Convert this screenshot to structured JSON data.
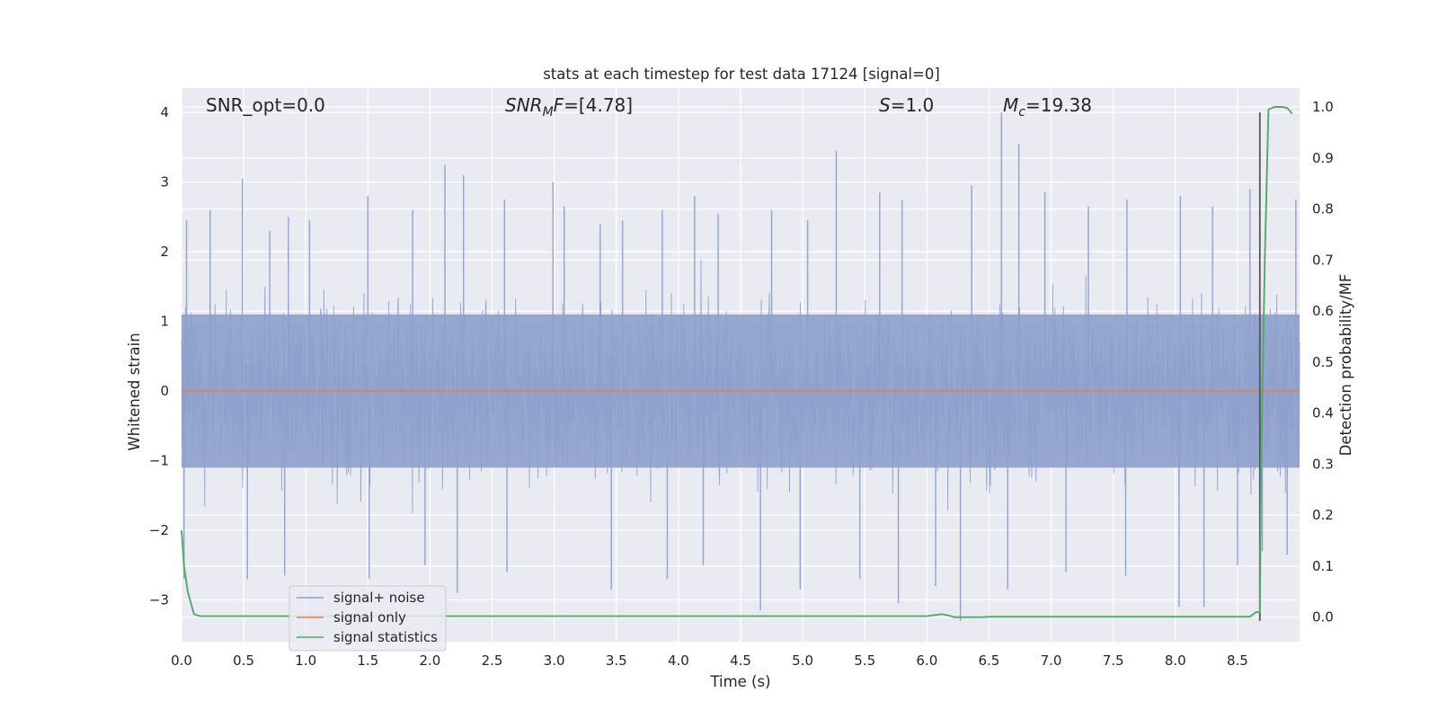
{
  "chart_data": {
    "type": "line",
    "title": "stats at each timestep for test data 17124 [signal=0]",
    "xlabel": "Time (s)",
    "ylabel": "Whitened strain",
    "ylabel_right": "Detection probability/MF",
    "xlim": [
      0.0,
      9.0
    ],
    "ylim": [
      -3.6,
      4.35
    ],
    "ylim_right": [
      -0.048,
      1.037
    ],
    "x_ticks": [
      "0.0",
      "0.5",
      "1.0",
      "1.5",
      "2.0",
      "2.5",
      "3.0",
      "3.5",
      "4.0",
      "4.5",
      "5.0",
      "5.5",
      "6.0",
      "6.5",
      "7.0",
      "7.5",
      "8.0",
      "8.5"
    ],
    "y_ticks": [
      "4",
      "3",
      "2",
      "1",
      "0",
      "−1",
      "−2",
      "−3"
    ],
    "y_ticks_right": [
      "1.0",
      "0.9",
      "0.8",
      "0.7",
      "0.6",
      "0.5",
      "0.4",
      "0.3",
      "0.2",
      "0.1",
      "0.0"
    ],
    "grid": true,
    "background": "#eaeaf2",
    "annotations": {
      "snr_opt": "SNR_opt=0.0",
      "snr_mf_main": "SNR",
      "snr_mf_sub": "M",
      "snr_mf_tail": "F",
      "snr_mf_value": "=[4.78]",
      "s_label": "S",
      "s_value": "=1.0",
      "mc_main": "M",
      "mc_sub": "c",
      "mc_value": "=19.38"
    },
    "marker_line": {
      "x": 8.68,
      "y": [
        -3.3,
        4.0
      ],
      "color": "#555555"
    },
    "series": [
      {
        "name": "signal+ noise",
        "color": "#8da0cb",
        "axis": "left",
        "description_values": "dense whitened strain noise, mostly within [-1.2, 1.2], spikes up to ~4.0 and down to ~-3.3",
        "spikes": [
          [
            0.04,
            2.45
          ],
          [
            0.23,
            2.6
          ],
          [
            0.49,
            3.05
          ],
          [
            0.71,
            2.3
          ],
          [
            0.86,
            2.5
          ],
          [
            1.03,
            2.45
          ],
          [
            1.5,
            2.8
          ],
          [
            1.86,
            2.6
          ],
          [
            2.12,
            3.25
          ],
          [
            2.27,
            3.1
          ],
          [
            2.6,
            2.75
          ],
          [
            2.99,
            3.0
          ],
          [
            3.08,
            2.65
          ],
          [
            3.37,
            2.4
          ],
          [
            3.55,
            2.45
          ],
          [
            3.87,
            2.6
          ],
          [
            4.13,
            2.8
          ],
          [
            4.32,
            2.55
          ],
          [
            4.75,
            2.6
          ],
          [
            5.04,
            2.45
          ],
          [
            5.27,
            3.45
          ],
          [
            5.62,
            2.85
          ],
          [
            5.8,
            2.75
          ],
          [
            6.36,
            2.95
          ],
          [
            6.6,
            4.0
          ],
          [
            6.74,
            3.55
          ],
          [
            6.95,
            2.85
          ],
          [
            7.3,
            2.65
          ],
          [
            7.61,
            2.75
          ],
          [
            8.04,
            2.8
          ],
          [
            8.3,
            2.65
          ],
          [
            8.6,
            2.9
          ],
          [
            8.97,
            2.75
          ],
          [
            0.02,
            -2.7
          ],
          [
            0.53,
            -2.7
          ],
          [
            0.83,
            -2.65
          ],
          [
            1.51,
            -2.7
          ],
          [
            1.96,
            -2.5
          ],
          [
            2.22,
            -2.9
          ],
          [
            2.62,
            -2.6
          ],
          [
            3.46,
            -2.85
          ],
          [
            3.91,
            -2.7
          ],
          [
            4.2,
            -2.5
          ],
          [
            4.66,
            -3.15
          ],
          [
            4.98,
            -2.85
          ],
          [
            5.46,
            -2.7
          ],
          [
            5.77,
            -3.05
          ],
          [
            6.07,
            -2.8
          ],
          [
            6.27,
            -3.3
          ],
          [
            6.65,
            -2.85
          ],
          [
            7.12,
            -2.6
          ],
          [
            7.6,
            -2.65
          ],
          [
            8.03,
            -3.1
          ],
          [
            8.23,
            -3.1
          ],
          [
            8.5,
            -2.5
          ],
          [
            8.7,
            -2.3
          ],
          [
            8.9,
            -2.35
          ]
        ]
      },
      {
        "name": "signal only",
        "color": "#dd8452",
        "axis": "left",
        "x": [
          0.0,
          9.0
        ],
        "y": [
          0.0,
          0.0
        ]
      },
      {
        "name": "signal statistics",
        "color": "#55a868",
        "axis": "right",
        "x": [
          0.0,
          0.02,
          0.05,
          0.1,
          0.15,
          6.0,
          6.12,
          6.18,
          6.22,
          6.45,
          6.5,
          8.6,
          8.65,
          8.68,
          8.69,
          8.72,
          8.75,
          8.8,
          8.86,
          8.9,
          8.94
        ],
        "y": [
          0.17,
          0.1,
          0.05,
          0.006,
          0.002,
          0.002,
          0.006,
          0.003,
          0.0,
          0.0,
          0.001,
          0.001,
          0.01,
          0.01,
          0.3,
          0.7,
          0.995,
          1.0,
          1.0,
          0.998,
          0.987
        ]
      }
    ],
    "legend": {
      "position": "lower-left",
      "items": [
        "signal+ noise",
        "signal only",
        "signal statistics"
      ]
    }
  }
}
